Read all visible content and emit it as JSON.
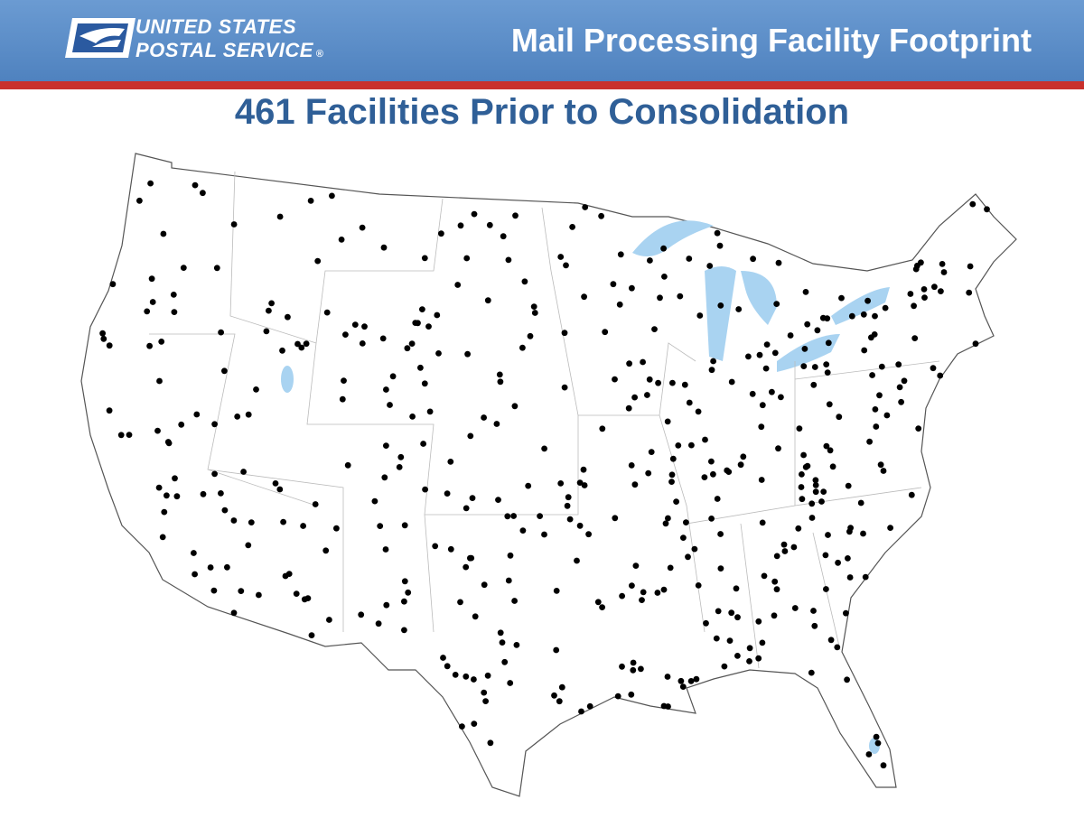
{
  "header": {
    "logo": {
      "line1": "UNITED STATES",
      "line2": "POSTAL SERVICE",
      "mark": "®"
    },
    "title": "Mail Processing Facility Footprint"
  },
  "subtitle": "461 Facilities Prior to Consolidation"
}
